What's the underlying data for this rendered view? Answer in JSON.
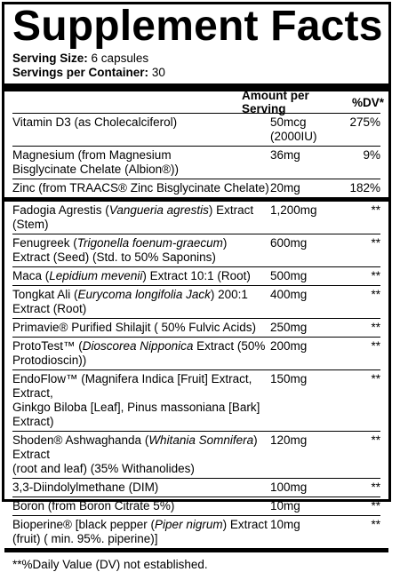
{
  "title": "Supplement Facts",
  "serving_size_label": "Serving Size:",
  "serving_size_value": "6 capsules",
  "servings_label": "Servings per Container:",
  "servings_value": "30",
  "header": {
    "amount": "Amount per Serving",
    "dv": "%DV*"
  },
  "rows": [
    {
      "name": "Vitamin D3 (as Cholecalciferol)",
      "amount": "50mcg (2000IU)",
      "dv": "275%"
    },
    {
      "name_1": "Magnesium (from Magnesium",
      "name_2": "Bisglycinate Chelate (Albion®))",
      "amount": "36mg",
      "dv": "9%"
    },
    {
      "name": "Zinc (from TRAACS® Zinc Bisglycinate Chelate)",
      "amount": "20mg",
      "dv": "182%"
    },
    {
      "pre": "Fadogia Agrestis (",
      "ital": "Vangueria agrestis",
      "post": ") Extract (Stem)",
      "amount": "1,200mg",
      "dv": "**"
    },
    {
      "pre": "Fenugreek (",
      "ital": "Trigonella foenum-graecum",
      "post": ")",
      "name_2": "Extract (Seed) (Std. to 50% Saponins)",
      "amount": "600mg",
      "dv": "**"
    },
    {
      "pre": "Maca (",
      "ital": "Lepidium mevenii",
      "post": ") Extract 10:1 (Root)",
      "amount": "500mg",
      "dv": "**"
    },
    {
      "pre": "Tongkat Ali (",
      "ital": "Eurycoma longifolia Jack",
      "post": ") 200:1 Extract (Root)",
      "amount": "400mg",
      "dv": "**"
    },
    {
      "name": "Primavie® Purified Shilajit ( 50% Fulvic Acids)",
      "amount": "250mg",
      "dv": "**"
    },
    {
      "pre": "ProtoTest™ (",
      "ital": "Dioscorea Nipponica",
      "post": " Extract (50% Protodioscin))",
      "amount": "200mg",
      "dv": "**"
    },
    {
      "name_1": "EndoFlow™ (Magnifera Indica [Fruit] Extract, Extract,",
      "name_2": "Ginkgo Biloba [Leaf], Pinus massoniana [Bark] Extract)",
      "amount": "150mg",
      "dv": "**"
    },
    {
      "pre": "Shoden® Ashwaghanda (",
      "ital": "Whitania Somnifera",
      "post": ") Extract",
      "name_2": "(root and leaf) (35% Withanolides)",
      "amount": "120mg",
      "dv": "**"
    },
    {
      "name": "3,3-Diindolylmethane (DIM)",
      "amount": "100mg",
      "dv": "**"
    },
    {
      "name": "Boron (from Boron Citrate 5%)",
      "amount": "10mg",
      "dv": "**"
    },
    {
      "pre": "Bioperine® [black pepper (",
      "ital": "Piper nigrum",
      "post": ") Extract",
      "name_2": "(fruit) ( min. 95%. piperine)]",
      "amount": "10mg",
      "dv": "**"
    }
  ],
  "footnote": "**%Daily Value (DV) not established."
}
